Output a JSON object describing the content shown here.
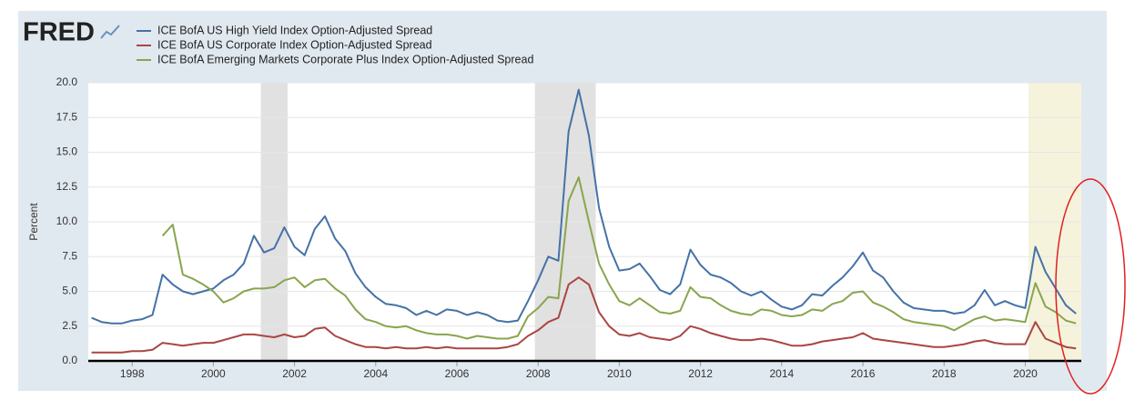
{
  "chart_data": {
    "type": "line",
    "logo": "FRED",
    "ylabel": "Percent",
    "xlim": [
      1996.92,
      2021.38
    ],
    "xticks": [
      1998,
      2000,
      2002,
      2004,
      2006,
      2008,
      2010,
      2012,
      2014,
      2016,
      2018,
      2020
    ],
    "ylim": [
      0,
      20
    ],
    "yticks": [
      {
        "value": 0,
        "label": "0.0"
      },
      2.5,
      {
        "value": 5,
        "label": "5.0"
      },
      7.5,
      {
        "value": 10,
        "label": "10.0"
      },
      12.5,
      {
        "value": 15,
        "label": "15.0"
      },
      17.5,
      {
        "value": 20,
        "label": "20.0"
      }
    ],
    "grid": true,
    "recessions": [
      [
        2001.17,
        2001.83
      ],
      [
        2007.92,
        2009.42
      ]
    ],
    "recession_color": "#e1e1e1",
    "highlight": [
      2020.08,
      2021.38
    ],
    "highlight_color": "#f6f3dc",
    "x": [
      1997,
      1997.25,
      1997.5,
      1997.75,
      1998,
      1998.25,
      1998.5,
      1998.75,
      1999,
      1999.25,
      1999.5,
      1999.75,
      2000,
      2000.25,
      2000.5,
      2000.75,
      2001,
      2001.25,
      2001.5,
      2001.75,
      2002,
      2002.25,
      2002.5,
      2002.75,
      2003,
      2003.25,
      2003.5,
      2003.75,
      2004,
      2004.25,
      2004.5,
      2004.75,
      2005,
      2005.25,
      2005.5,
      2005.75,
      2006,
      2006.25,
      2006.5,
      2006.75,
      2007,
      2007.25,
      2007.5,
      2007.75,
      2008,
      2008.25,
      2008.5,
      2008.75,
      2009,
      2009.25,
      2009.5,
      2009.75,
      2010,
      2010.25,
      2010.5,
      2010.75,
      2011,
      2011.25,
      2011.5,
      2011.75,
      2012,
      2012.25,
      2012.5,
      2012.75,
      2013,
      2013.25,
      2013.5,
      2013.75,
      2014,
      2014.25,
      2014.5,
      2014.75,
      2015,
      2015.25,
      2015.5,
      2015.75,
      2016,
      2016.25,
      2016.5,
      2016.75,
      2017,
      2017.25,
      2017.5,
      2017.75,
      2018,
      2018.25,
      2018.5,
      2018.75,
      2019,
      2019.25,
      2019.5,
      2019.75,
      2020,
      2020.25,
      2020.5,
      2020.75,
      2021,
      2021.25
    ],
    "series": [
      {
        "name": "ICE BofA US High Yield Index Option-Adjusted Spread",
        "color": "#4572a7",
        "values": [
          3.1,
          2.8,
          2.7,
          2.7,
          2.9,
          3.0,
          3.3,
          6.2,
          5.5,
          5.0,
          4.8,
          5.0,
          5.2,
          5.8,
          6.2,
          7.0,
          9.0,
          7.8,
          8.1,
          9.6,
          8.2,
          7.6,
          9.5,
          10.4,
          8.8,
          7.9,
          6.3,
          5.3,
          4.6,
          4.1,
          4.0,
          3.8,
          3.3,
          3.6,
          3.3,
          3.7,
          3.6,
          3.3,
          3.5,
          3.3,
          2.9,
          2.8,
          2.9,
          4.3,
          5.8,
          7.5,
          7.2,
          16.5,
          19.5,
          16.2,
          11.0,
          8.2,
          6.5,
          6.6,
          7.0,
          6.1,
          5.1,
          4.8,
          5.5,
          8.0,
          6.9,
          6.2,
          6.0,
          5.6,
          5.0,
          4.7,
          5.0,
          4.4,
          3.9,
          3.7,
          4.0,
          4.8,
          4.7,
          5.4,
          6.0,
          6.8,
          7.8,
          6.5,
          6.0,
          5.0,
          4.2,
          3.8,
          3.7,
          3.6,
          3.6,
          3.4,
          3.5,
          4.0,
          5.1,
          4.0,
          4.3,
          4.0,
          3.8,
          8.2,
          6.4,
          5.2,
          4.0,
          3.4
        ]
      },
      {
        "name": "ICE BofA US Corporate Index Option-Adjusted Spread",
        "color": "#aa4643",
        "values": [
          0.6,
          0.6,
          0.6,
          0.6,
          0.7,
          0.7,
          0.8,
          1.3,
          1.2,
          1.1,
          1.2,
          1.3,
          1.3,
          1.5,
          1.7,
          1.9,
          1.9,
          1.8,
          1.7,
          1.9,
          1.7,
          1.8,
          2.3,
          2.4,
          1.8,
          1.5,
          1.2,
          1.0,
          1.0,
          0.9,
          1.0,
          0.9,
          0.9,
          1.0,
          0.9,
          1.0,
          0.9,
          0.9,
          0.9,
          0.9,
          0.9,
          1.0,
          1.2,
          1.8,
          2.2,
          2.8,
          3.1,
          5.5,
          6.0,
          5.5,
          3.5,
          2.5,
          1.9,
          1.8,
          2.0,
          1.7,
          1.6,
          1.5,
          1.8,
          2.5,
          2.3,
          2.0,
          1.8,
          1.6,
          1.5,
          1.5,
          1.6,
          1.5,
          1.3,
          1.1,
          1.1,
          1.2,
          1.4,
          1.5,
          1.6,
          1.7,
          2.0,
          1.6,
          1.5,
          1.4,
          1.3,
          1.2,
          1.1,
          1.0,
          1.0,
          1.1,
          1.2,
          1.4,
          1.5,
          1.3,
          1.2,
          1.2,
          1.2,
          2.8,
          1.6,
          1.3,
          1.0,
          0.9
        ]
      },
      {
        "name": "ICE BofA Emerging Markets Corporate Plus Index Option-Adjusted Spread",
        "color": "#89a54e",
        "values": [
          null,
          null,
          null,
          null,
          null,
          null,
          null,
          9.0,
          9.8,
          6.2,
          5.9,
          5.5,
          5.0,
          4.2,
          4.5,
          5.0,
          5.2,
          5.2,
          5.3,
          5.8,
          6.0,
          5.3,
          5.8,
          5.9,
          5.2,
          4.7,
          3.7,
          3.0,
          2.8,
          2.5,
          2.4,
          2.5,
          2.2,
          2.0,
          1.9,
          1.9,
          1.8,
          1.6,
          1.8,
          1.7,
          1.6,
          1.6,
          1.8,
          3.2,
          3.8,
          4.6,
          4.5,
          11.5,
          13.2,
          10.0,
          7.0,
          5.5,
          4.3,
          4.0,
          4.5,
          4.0,
          3.5,
          3.4,
          3.6,
          5.3,
          4.6,
          4.5,
          4.0,
          3.6,
          3.4,
          3.3,
          3.7,
          3.6,
          3.3,
          3.2,
          3.3,
          3.7,
          3.6,
          4.1,
          4.3,
          4.9,
          5.0,
          4.2,
          3.9,
          3.5,
          3.0,
          2.8,
          2.7,
          2.6,
          2.5,
          2.2,
          2.6,
          3.0,
          3.2,
          2.9,
          3.0,
          2.9,
          2.8,
          5.6,
          3.9,
          3.5,
          2.9,
          2.7
        ]
      }
    ]
  }
}
